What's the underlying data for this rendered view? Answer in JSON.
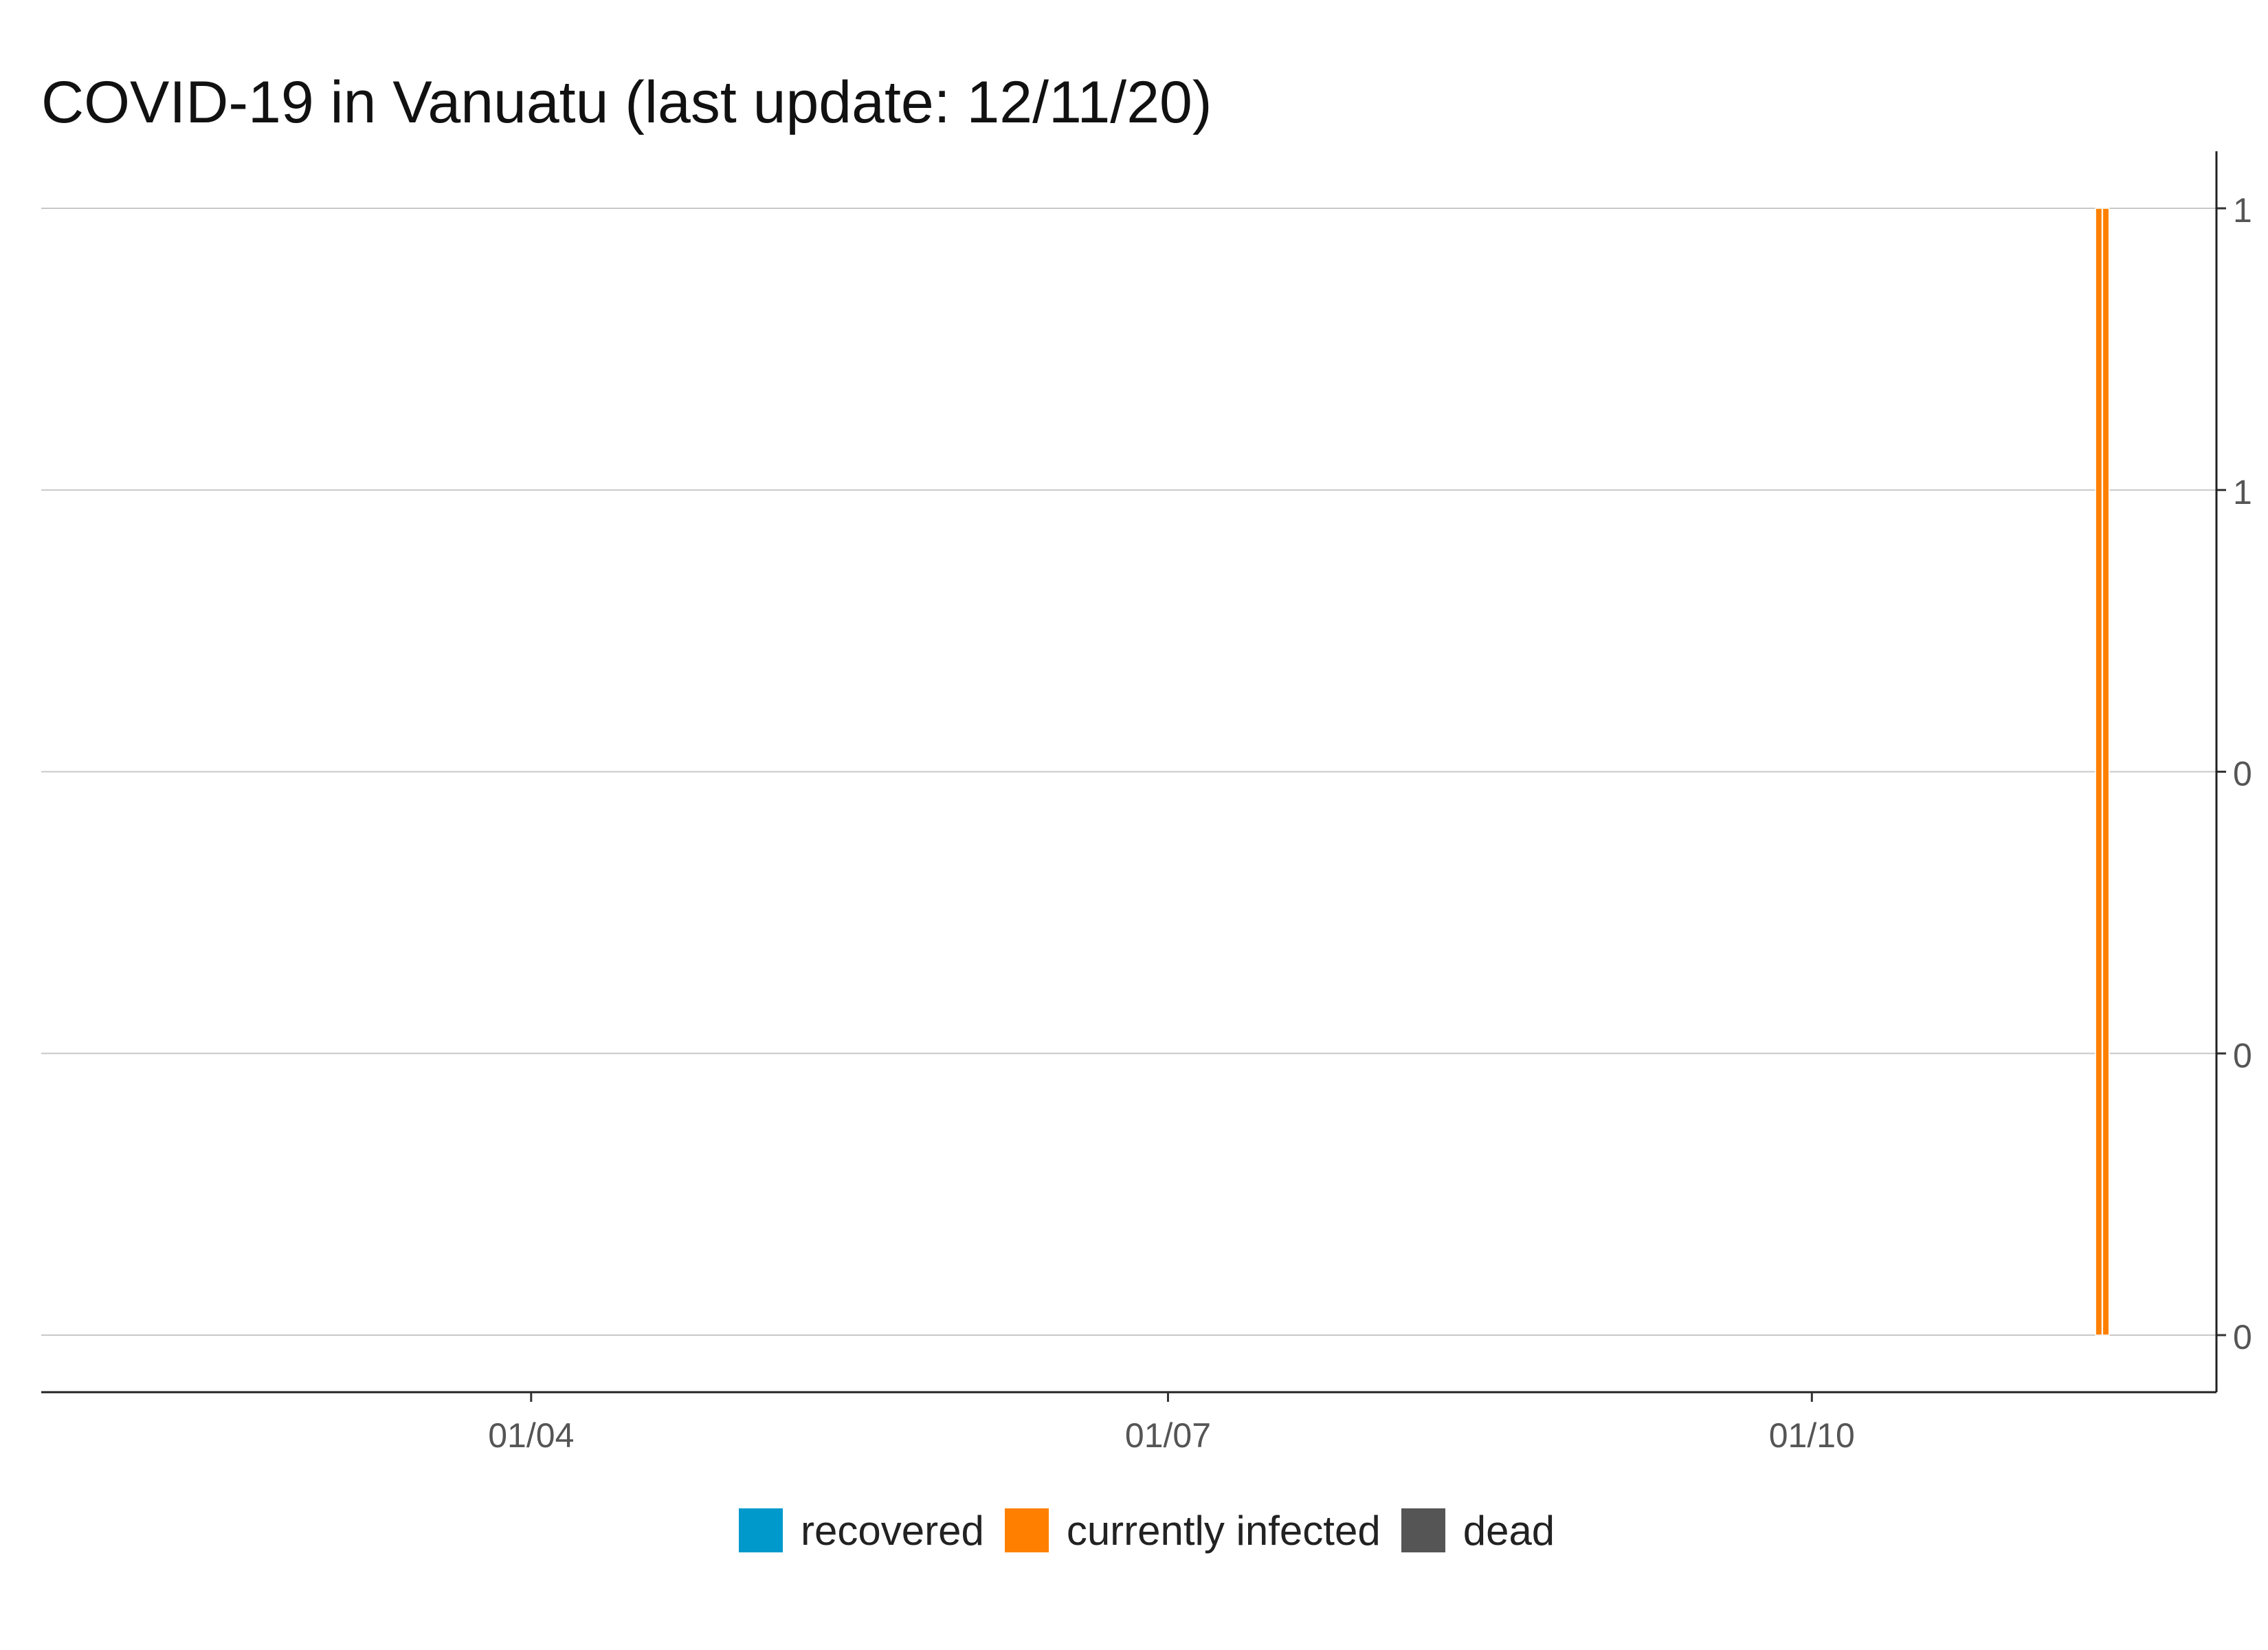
{
  "title": "COVID-19 in Vanuatu (last update: 12/11/20)",
  "chart_data": {
    "type": "bar",
    "stacked": true,
    "x_axis": {
      "type": "date",
      "range": [
        "2020-01-22",
        "2020-11-12"
      ],
      "tick_labels": [
        "01/04",
        "01/07",
        "01/10"
      ],
      "tick_dates": [
        "2020-04-01",
        "2020-07-01",
        "2020-10-01"
      ]
    },
    "y_axis": {
      "position": "right",
      "range": [
        0,
        1
      ],
      "ticks": [
        0,
        0.25,
        0.5,
        0.75,
        1
      ],
      "tick_labels": [
        "0",
        "0",
        "0",
        "1",
        "1"
      ]
    },
    "grid": "horizontal",
    "legend_position": "bottom",
    "series": [
      {
        "name": "recovered",
        "color": "#0099CC",
        "points": []
      },
      {
        "name": "currently infected",
        "color": "#FF8000",
        "points": [
          {
            "date": "2020-11-11",
            "value": 1
          },
          {
            "date": "2020-11-12",
            "value": 1
          }
        ]
      },
      {
        "name": "dead",
        "color": "#555555",
        "points": []
      }
    ]
  }
}
